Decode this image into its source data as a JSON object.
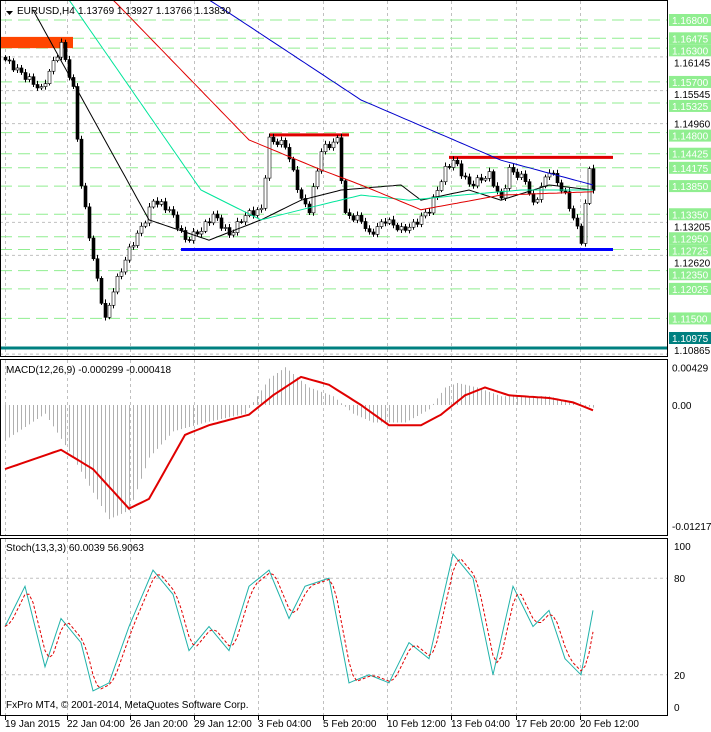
{
  "chart_data": [
    {
      "type": "candlestick",
      "title": "EURUSD,H4",
      "ohlc_header": [
        "1.13769",
        "1.13927",
        "1.13766",
        "1.13830"
      ],
      "ylim": [
        1.108,
        1.1716
      ],
      "bars": 148,
      "close_keypoints": [
        [
          0,
          1.1609
        ],
        [
          9,
          1.1556
        ],
        [
          14,
          1.1636
        ],
        [
          17,
          1.1556
        ],
        [
          19,
          1.1387
        ],
        [
          22,
          1.1254
        ],
        [
          25,
          1.1147
        ],
        [
          27,
          1.1201
        ],
        [
          31,
          1.1272
        ],
        [
          35,
          1.1325
        ],
        [
          37,
          1.136
        ],
        [
          41,
          1.1343
        ],
        [
          45,
          1.1289
        ],
        [
          49,
          1.1307
        ],
        [
          52,
          1.1334
        ],
        [
          56,
          1.1298
        ],
        [
          60,
          1.1334
        ],
        [
          64,
          1.1343
        ],
        [
          66,
          1.1467
        ],
        [
          70,
          1.1458
        ],
        [
          74,
          1.136
        ],
        [
          76,
          1.1343
        ],
        [
          79,
          1.1449
        ],
        [
          83,
          1.1467
        ],
        [
          85,
          1.1334
        ],
        [
          89,
          1.1325
        ],
        [
          91,
          1.1298
        ],
        [
          95,
          1.1325
        ],
        [
          99,
          1.1307
        ],
        [
          102,
          1.1316
        ],
        [
          106,
          1.1343
        ],
        [
          110,
          1.1414
        ],
        [
          112,
          1.1431
        ],
        [
          116,
          1.1387
        ],
        [
          121,
          1.1405
        ],
        [
          124,
          1.136
        ],
        [
          126,
          1.1414
        ],
        [
          130,
          1.1396
        ],
        [
          132,
          1.1351
        ],
        [
          136,
          1.1414
        ],
        [
          140,
          1.1369
        ],
        [
          144,
          1.1289
        ],
        [
          146,
          1.1414
        ],
        [
          147,
          1.1383
        ]
      ],
      "moving_averages": [
        {
          "name": "fast",
          "color": "#000000",
          "points": [
            [
              7,
              1.1698
            ],
            [
              36,
              1.1325
            ],
            [
              51,
              1.1289
            ],
            [
              64,
              1.1325
            ],
            [
              74,
              1.136
            ],
            [
              84,
              1.1378
            ],
            [
              99,
              1.1387
            ],
            [
              104,
              1.136
            ],
            [
              116,
              1.1378
            ],
            [
              124,
              1.136
            ],
            [
              136,
              1.1387
            ],
            [
              147,
              1.1378
            ]
          ]
        },
        {
          "name": "medium",
          "color": "#00e59a",
          "points": [
            [
              16,
              1.1716
            ],
            [
              49,
              1.1378
            ],
            [
              64,
              1.1325
            ],
            [
              74,
              1.1343
            ],
            [
              89,
              1.1369
            ],
            [
              101,
              1.136
            ],
            [
              114,
              1.1369
            ],
            [
              129,
              1.1378
            ],
            [
              147,
              1.1378
            ]
          ]
        },
        {
          "name": "slow",
          "color": "#e00000",
          "points": [
            [
              27,
              1.1716
            ],
            [
              61,
              1.1467
            ],
            [
              79,
              1.1414
            ],
            [
              89,
              1.1387
            ],
            [
              104,
              1.1343
            ],
            [
              124,
              1.1369
            ],
            [
              147,
              1.1375
            ]
          ]
        },
        {
          "name": "slowest",
          "color": "#0000cc",
          "points": [
            [
              51,
              1.1716
            ],
            [
              89,
              1.1538
            ],
            [
              124,
              1.1431
            ],
            [
              147,
              1.1387
            ]
          ]
        }
      ],
      "level_labels": [
        "1.16800",
        "1.16475",
        "1.16300",
        "1.15700",
        "1.15325",
        "1.14800",
        "1.14425",
        "1.14175",
        "1.13850",
        "1.13350",
        "1.12950",
        "1.12725",
        "1.12350",
        "1.12025",
        "1.11500"
      ],
      "current_price_label": "1.10975",
      "axis_ticks": [
        "1.16145",
        "1.15545",
        "1.14960",
        "1.13205",
        "1.12620",
        "1.10865"
      ],
      "annotations": {
        "resistance_zone": {
          "price_top": 1.165,
          "price_bottom": 1.163,
          "bar_from": 0,
          "bar_to": 17,
          "color": "#ff4500"
        },
        "resistance_1": {
          "price": 1.1476,
          "bar_from": 66,
          "bar_to": 86,
          "color": "#e00000"
        },
        "resistance_2": {
          "price": 1.1436,
          "bar_from": 111,
          "bar_to": 152,
          "color": "#e00000"
        },
        "support": {
          "price": 1.12725,
          "bar_from": 44,
          "bar_to": 152,
          "color": "#0000ff"
        },
        "low_line": {
          "price": 1.10975,
          "color": "#008080"
        }
      }
    },
    {
      "type": "bar+line",
      "title": "MACD(12,26,9) -0.000299 -0.000418",
      "ylim": [
        -0.0125,
        0.0047
      ],
      "tick_labels": [
        "0.00429",
        "0.00",
        "-0.012179"
      ],
      "histogram_keypoints": [
        [
          0,
          -0.004
        ],
        [
          10,
          -0.001
        ],
        [
          17,
          -0.006
        ],
        [
          22,
          -0.01
        ],
        [
          26,
          -0.013
        ],
        [
          31,
          -0.012
        ],
        [
          36,
          -0.006
        ],
        [
          42,
          -0.003
        ],
        [
          50,
          -0.002
        ],
        [
          60,
          -0.001
        ],
        [
          66,
          0.003
        ],
        [
          70,
          0.0043
        ],
        [
          76,
          0.002
        ],
        [
          82,
          0.001
        ],
        [
          87,
          -0.001
        ],
        [
          92,
          -0.002
        ],
        [
          100,
          -0.002
        ],
        [
          106,
          -0.0005
        ],
        [
          110,
          0.002
        ],
        [
          113,
          0.0025
        ],
        [
          118,
          0.002
        ],
        [
          124,
          0.001
        ],
        [
          130,
          0.001
        ],
        [
          136,
          0.001
        ],
        [
          142,
          0.0002
        ],
        [
          147,
          -0.0003
        ]
      ],
      "signal_keypoints": [
        [
          0,
          -0.0073
        ],
        [
          14,
          -0.0051
        ],
        [
          22,
          -0.0073
        ],
        [
          31,
          -0.0118
        ],
        [
          36,
          -0.0107
        ],
        [
          45,
          -0.0034
        ],
        [
          51,
          -0.0023
        ],
        [
          61,
          -0.0011
        ],
        [
          67,
          0.0011
        ],
        [
          74,
          0.0032
        ],
        [
          81,
          0.0023
        ],
        [
          89,
          0.0
        ],
        [
          96,
          -0.0023
        ],
        [
          104,
          -0.0023
        ],
        [
          109,
          -0.0011
        ],
        [
          115,
          0.0011
        ],
        [
          120,
          0.002
        ],
        [
          126,
          0.0011
        ],
        [
          136,
          0.0008
        ],
        [
          142,
          0.0003
        ],
        [
          147,
          -0.0006
        ]
      ]
    },
    {
      "type": "line",
      "title": "Stoch(13,3,3) 60.0039 56.9063",
      "ylim": [
        0,
        100
      ],
      "tick_labels": [
        "100",
        "80",
        "20",
        "0"
      ],
      "main_keypoints": [
        [
          0,
          50
        ],
        [
          5,
          75
        ],
        [
          10,
          25
        ],
        [
          14,
          55
        ],
        [
          19,
          40
        ],
        [
          22,
          10
        ],
        [
          26,
          15
        ],
        [
          31,
          50
        ],
        [
          37,
          85
        ],
        [
          42,
          70
        ],
        [
          46,
          35
        ],
        [
          51,
          50
        ],
        [
          56,
          35
        ],
        [
          61,
          75
        ],
        [
          66,
          85
        ],
        [
          71,
          55
        ],
        [
          75,
          75
        ],
        [
          81,
          80
        ],
        [
          86,
          15
        ],
        [
          91,
          20
        ],
        [
          96,
          15
        ],
        [
          101,
          40
        ],
        [
          106,
          30
        ],
        [
          112,
          95
        ],
        [
          117,
          80
        ],
        [
          122,
          20
        ],
        [
          127,
          75
        ],
        [
          132,
          50
        ],
        [
          136,
          60
        ],
        [
          140,
          30
        ],
        [
          144,
          20
        ],
        [
          147,
          60
        ]
      ]
    }
  ],
  "time_labels": [
    "19 Jan 2015",
    "22 Jan 04:00",
    "26 Jan 20:00",
    "29 Jan 12:00",
    "3 Feb 04:00",
    "5 Feb 20:00",
    "10 Feb 12:00",
    "13 Feb 04:00",
    "17 Feb 20:00",
    "20 Feb 12:00"
  ],
  "copyright": "FxPro MT4, © 2001-2014, MetaQuotes Software Corp.",
  "colors": {
    "level": "#90ee90",
    "grid": "#c0c0c0"
  }
}
